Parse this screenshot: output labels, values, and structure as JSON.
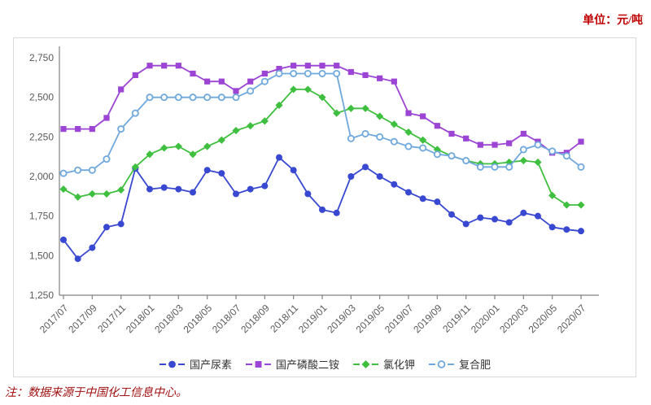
{
  "header": {
    "unit_label": "单位：元/吨"
  },
  "footer": {
    "note": "注：数据来源于中国化工信息中心。"
  },
  "chart_data": {
    "type": "line",
    "title": "",
    "unit": "元/吨",
    "grid": false,
    "legend_position": "bottom",
    "ylim": [
      1250,
      2750
    ],
    "x_tick_every": 2,
    "y_ticks": [
      {
        "value": 1250,
        "label": "1,250"
      },
      {
        "value": 1500,
        "label": "1,500"
      },
      {
        "value": 1750,
        "label": "1,750"
      },
      {
        "value": 2000,
        "label": "2,000"
      },
      {
        "value": 2250,
        "label": "2,250"
      },
      {
        "value": 2500,
        "label": "2,500"
      },
      {
        "value": 2750,
        "label": "2,750"
      }
    ],
    "categories": [
      "2017/07",
      "2017/08",
      "2017/09",
      "2017/10",
      "2017/11",
      "2017/12",
      "2018/01",
      "2018/02",
      "2018/03",
      "2018/04",
      "2018/05",
      "2018/06",
      "2018/07",
      "2018/08",
      "2018/09",
      "2018/10",
      "2018/11",
      "2018/12",
      "2019/01",
      "2019/02",
      "2019/03",
      "2019/04",
      "2019/05",
      "2019/06",
      "2019/07",
      "2019/08",
      "2019/09",
      "2019/10",
      "2019/11",
      "2019/12",
      "2020/01",
      "2020/02",
      "2020/03",
      "2020/04",
      "2020/05",
      "2020/06",
      "2020/07"
    ],
    "series": [
      {
        "name": "国产尿素",
        "marker": "circle",
        "color": "#3948d1",
        "values": [
          1600,
          1480,
          1550,
          1680,
          1700,
          2050,
          1920,
          1930,
          1920,
          1900,
          2040,
          2020,
          1890,
          1920,
          1940,
          2120,
          2040,
          1890,
          1790,
          1770,
          2000,
          2060,
          2000,
          1950,
          1900,
          1860,
          1840,
          1760,
          1700,
          1740,
          1730,
          1710,
          1770,
          1750,
          1680,
          1665,
          1655
        ]
      },
      {
        "name": "国产磷酸二铵",
        "marker": "square",
        "color": "#9c44d4",
        "values": [
          2300,
          2300,
          2300,
          2370,
          2550,
          2640,
          2700,
          2700,
          2700,
          2650,
          2600,
          2600,
          2540,
          2600,
          2650,
          2680,
          2700,
          2700,
          2700,
          2700,
          2660,
          2640,
          2620,
          2600,
          2400,
          2380,
          2320,
          2270,
          2240,
          2200,
          2200,
          2210,
          2270,
          2220,
          2150,
          2150,
          2220
        ]
      },
      {
        "name": "氯化钾",
        "marker": "diamond",
        "color": "#3fbf3f",
        "values": [
          1920,
          1870,
          1890,
          1890,
          1915,
          2060,
          2140,
          2180,
          2190,
          2140,
          2190,
          2230,
          2290,
          2320,
          2350,
          2450,
          2550,
          2550,
          2500,
          2400,
          2430,
          2430,
          2380,
          2330,
          2280,
          2230,
          2170,
          2130,
          2100,
          2080,
          2080,
          2090,
          2100,
          2090,
          1880,
          1820,
          1820
        ]
      },
      {
        "name": "复合肥",
        "marker": "open-circle",
        "color": "#6fa8dc",
        "values": [
          2020,
          2040,
          2040,
          2110,
          2300,
          2400,
          2500,
          2500,
          2500,
          2500,
          2500,
          2500,
          2500,
          2540,
          2600,
          2650,
          2650,
          2650,
          2650,
          2650,
          2240,
          2270,
          2250,
          2220,
          2190,
          2180,
          2140,
          2130,
          2100,
          2060,
          2060,
          2060,
          2170,
          2200,
          2160,
          2130,
          2060
        ]
      }
    ]
  }
}
